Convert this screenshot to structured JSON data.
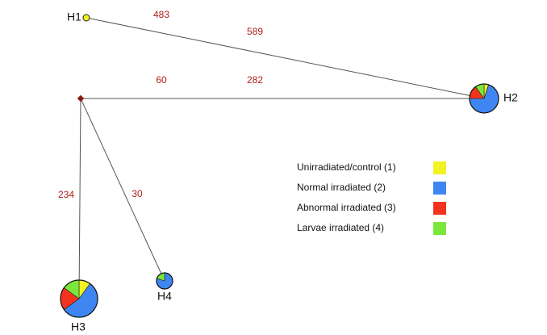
{
  "nodes": [
    {
      "label": "H1",
      "composition": [
        100,
        0,
        0,
        0
      ]
    },
    {
      "label": "H2",
      "composition": [
        5,
        70,
        15,
        10
      ]
    },
    {
      "label": "H3",
      "composition": [
        10,
        55,
        20,
        15
      ]
    },
    {
      "label": "H4",
      "composition": [
        0,
        80,
        0,
        20
      ]
    }
  ],
  "edge_labels": [
    483,
    589,
    60,
    282,
    234,
    30
  ],
  "legend": [
    {
      "label": "Unirradiated/control (1)",
      "color": "#f2f224"
    },
    {
      "label": "Normal irradiated (2)",
      "color": "#3f86f2"
    },
    {
      "label": "Abnormal irradiated (3)",
      "color": "#f2341f"
    },
    {
      "label": "Larvae irradiated (4)",
      "color": "#7ae83a"
    }
  ]
}
